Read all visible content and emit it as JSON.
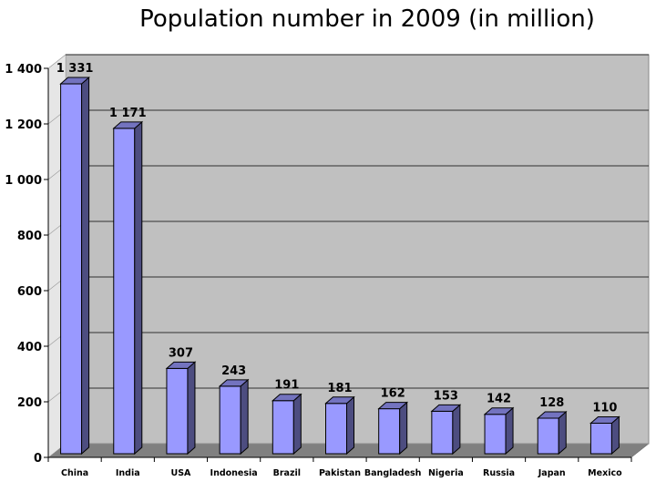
{
  "chart_data": {
    "type": "bar",
    "title": "Population number in 2009 (in million)",
    "xlabel": "",
    "ylabel": "",
    "categories": [
      "China",
      "India",
      "USA",
      "Indonesia",
      "Brazil",
      "Pakistan",
      "Bangladesh",
      "Nigeria",
      "Russia",
      "Japan",
      "Mexico"
    ],
    "values": [
      1331,
      1171,
      307,
      243,
      191,
      181,
      162,
      153,
      142,
      128,
      110
    ],
    "data_labels": [
      "1 331",
      "1 171",
      "307",
      "243",
      "191",
      "181",
      "162",
      "153",
      "142",
      "128",
      "110"
    ],
    "ylim": [
      0,
      1400
    ],
    "y_ticks": [
      0,
      200,
      400,
      600,
      800,
      1000,
      1200,
      1400
    ],
    "y_tick_labels": [
      "0",
      "200",
      "400",
      "600",
      "800",
      "1 000",
      "1 200",
      "1 400"
    ],
    "grid": true,
    "legend": "none",
    "colors": {
      "bar_front": "#9999ff",
      "bar_side": "#4d4d80",
      "bar_top": "#7373bf",
      "wall": "#c0c0c0",
      "floor": "#808080",
      "gridline": "#000000"
    }
  }
}
